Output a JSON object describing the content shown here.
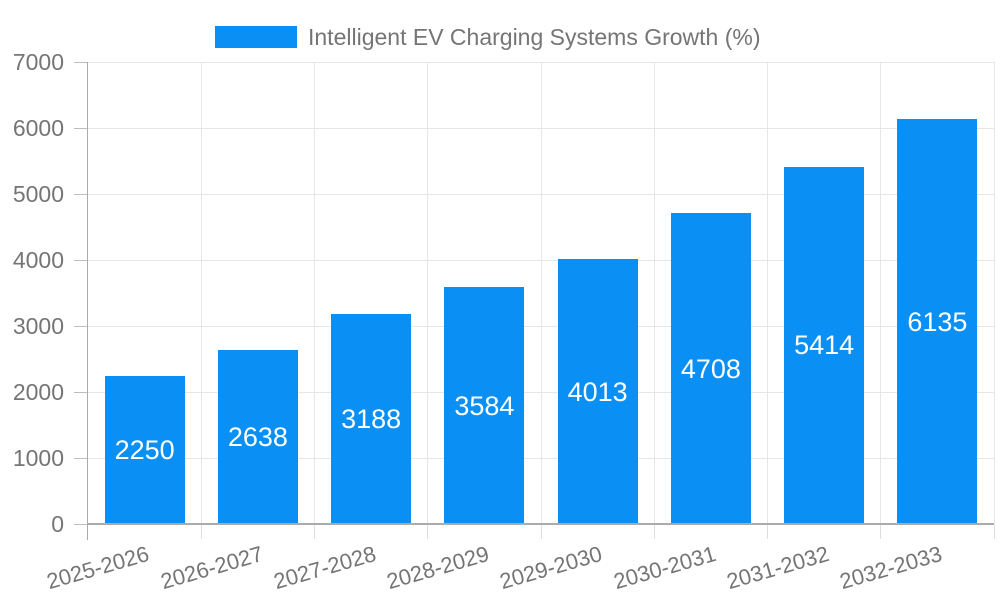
{
  "chart_data": {
    "type": "bar",
    "title": "Intelligent EV Charging Systems Growth (%)",
    "categories": [
      "2025-2026",
      "2026-2027",
      "2027-2028",
      "2028-2029",
      "2029-2030",
      "2030-2031",
      "2031-2032",
      "2032-2033"
    ],
    "values": [
      2250,
      2638,
      3188,
      3584,
      4013,
      4708,
      5414,
      6135
    ],
    "xlabel": "",
    "ylabel": "",
    "ylim": [
      0,
      7000
    ],
    "yticks": [
      0,
      1000,
      2000,
      3000,
      4000,
      5000,
      6000,
      7000
    ],
    "grid": true,
    "legend_position": "top",
    "bar_value_labels": "inside-center"
  },
  "colors": {
    "bar": "#0a8ff4",
    "bar_label": "#ffffff",
    "text": "#757575",
    "grid": "#e6e6e6",
    "axis": "#ababab",
    "x_tick": "#dedede",
    "y_tick": "#bdbdbd",
    "background": "#ffffff"
  }
}
